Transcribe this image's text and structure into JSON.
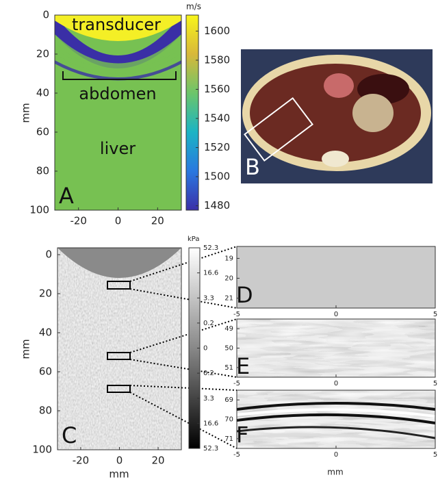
{
  "panel_a": {
    "label": "A",
    "annotations": [
      "transducer",
      "abdomen",
      "liver"
    ],
    "y_label": "mm",
    "xlim": [
      -32,
      32
    ],
    "xticks": [
      -20,
      0,
      20
    ],
    "ylim": [
      0,
      100
    ],
    "yticks": [
      0,
      20,
      40,
      60,
      80,
      100
    ],
    "colorbar": {
      "unit": "m/s",
      "lim": [
        1477,
        1611
      ],
      "ticks": [
        1480,
        1500,
        1520,
        1540,
        1560,
        1580,
        1600
      ]
    }
  },
  "panel_b": {
    "label": "B"
  },
  "panel_c": {
    "label": "C",
    "x_label": "mm",
    "y_label": "mm",
    "xlim": [
      -32,
      32
    ],
    "xticks": [
      -20,
      0,
      20
    ],
    "ylim": [
      -3.5,
      100
    ],
    "yticks": [
      0,
      20,
      40,
      60,
      80,
      100
    ],
    "colorbar": {
      "unit": "kPa",
      "ticks": [
        52.3,
        16.6,
        3.3,
        0.2,
        0,
        0.2,
        3.3,
        16.6,
        52.3
      ]
    }
  },
  "panel_d": {
    "label": "D",
    "xlim": [
      -5,
      5
    ],
    "xticks": [
      -5,
      0,
      5
    ],
    "ylim": [
      18.4,
      21.5
    ],
    "yticks": [
      19,
      20,
      21
    ]
  },
  "panel_e": {
    "label": "E",
    "xlim": [
      -5,
      5
    ],
    "xticks": [
      -5,
      0,
      5
    ],
    "ylim": [
      48.5,
      51.5
    ],
    "yticks": [
      49,
      50,
      51
    ]
  },
  "panel_f": {
    "label": "F",
    "x_label": "mm",
    "xlim": [
      -5,
      5
    ],
    "xticks": [
      -5,
      0,
      5
    ],
    "ylim": [
      68.5,
      71.5
    ],
    "yticks": [
      69,
      70,
      71
    ]
  }
}
